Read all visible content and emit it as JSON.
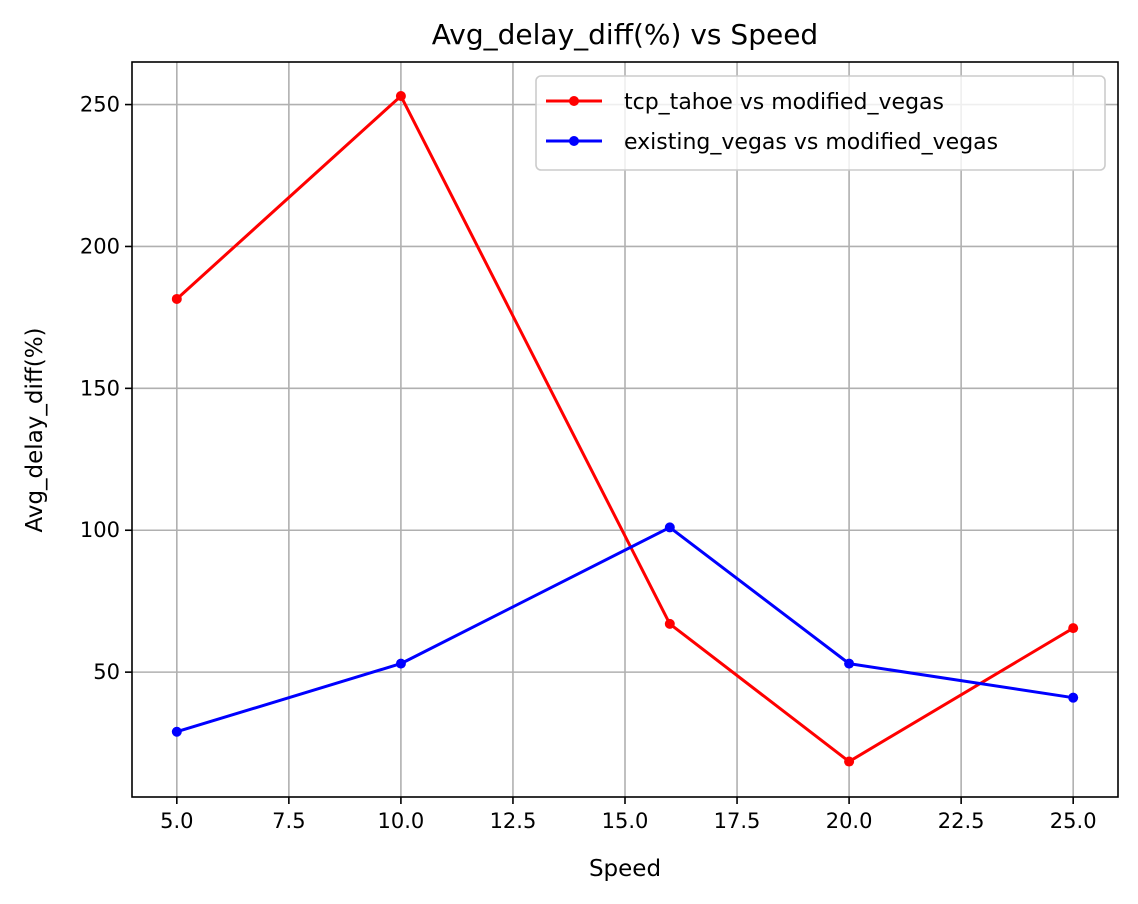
{
  "chart_data": {
    "type": "line",
    "title": "Avg_delay_diff(%) vs Speed",
    "xlabel": "Speed",
    "ylabel": "Avg_delay_diff(%)",
    "xlim": [
      4.0,
      26.0
    ],
    "ylim": [
      6.0,
      265.0
    ],
    "xticks": [
      5.0,
      7.5,
      10.0,
      12.5,
      15.0,
      17.5,
      20.0,
      22.5,
      25.0
    ],
    "xtick_labels": [
      "5.0",
      "7.5",
      "10.0",
      "12.5",
      "15.0",
      "17.5",
      "20.0",
      "22.5",
      "25.0"
    ],
    "yticks": [
      50,
      100,
      150,
      200,
      250
    ],
    "ytick_labels": [
      "50",
      "100",
      "150",
      "200",
      "250"
    ],
    "grid": true,
    "legend_position": "top-right",
    "series": [
      {
        "name": "tcp_tahoe vs modified_vegas",
        "color": "#ff0000",
        "x": [
          5,
          10,
          16,
          20,
          25
        ],
        "y": [
          181.5,
          253,
          67,
          18.5,
          65.5
        ]
      },
      {
        "name": "existing_vegas vs modified_vegas",
        "color": "#0000ff",
        "x": [
          5,
          10,
          16,
          20,
          25
        ],
        "y": [
          29,
          53,
          101,
          53,
          41
        ]
      }
    ]
  }
}
